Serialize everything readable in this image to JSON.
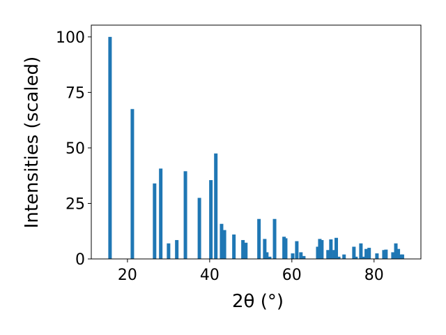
{
  "chart_data": {
    "type": "bar",
    "x_label": "2θ (°)",
    "y_label": "Intensities (scaled)",
    "x": [
      15.76,
      21.19,
      26.6,
      28.1,
      30.0,
      32.0,
      34.1,
      37.5,
      40.3,
      41.5,
      42.9,
      43.6,
      45.9,
      48.1,
      48.8,
      52.0,
      53.4,
      53.9,
      54.6,
      55.8,
      58.1,
      58.5,
      60.2,
      61.2,
      62.2,
      62.9,
      66.3,
      66.8,
      67.3,
      68.8,
      69.5,
      70.3,
      70.8,
      71.4,
      72.7,
      75.1,
      75.6,
      76.8,
      77.5,
      78.1,
      78.8,
      80.7,
      82.4,
      82.9,
      84.6,
      85.3,
      85.9,
      86.6,
      86.9
    ],
    "values": [
      100,
      67.5,
      34,
      40.7,
      7,
      8.5,
      39.5,
      27.5,
      35.5,
      47.5,
      15.8,
      13,
      11,
      8.5,
      7.3,
      18,
      9,
      3,
      1,
      18,
      10,
      9.3,
      2.5,
      8,
      3,
      1.3,
      5.5,
      9,
      8.5,
      4,
      8.8,
      4,
      9.5,
      1,
      2,
      5.5,
      1,
      7,
      1,
      4.5,
      5,
      2.5,
      4,
      4.2,
      3,
      7,
      4.5,
      2,
      2
    ],
    "color": "#1f77b4",
    "xlim": [
      11.2,
      91.4
    ],
    "xticks": [
      20,
      40,
      60,
      80
    ],
    "ylim": [
      0,
      105.3
    ],
    "yticks": [
      0,
      25,
      50,
      75,
      100
    ]
  }
}
